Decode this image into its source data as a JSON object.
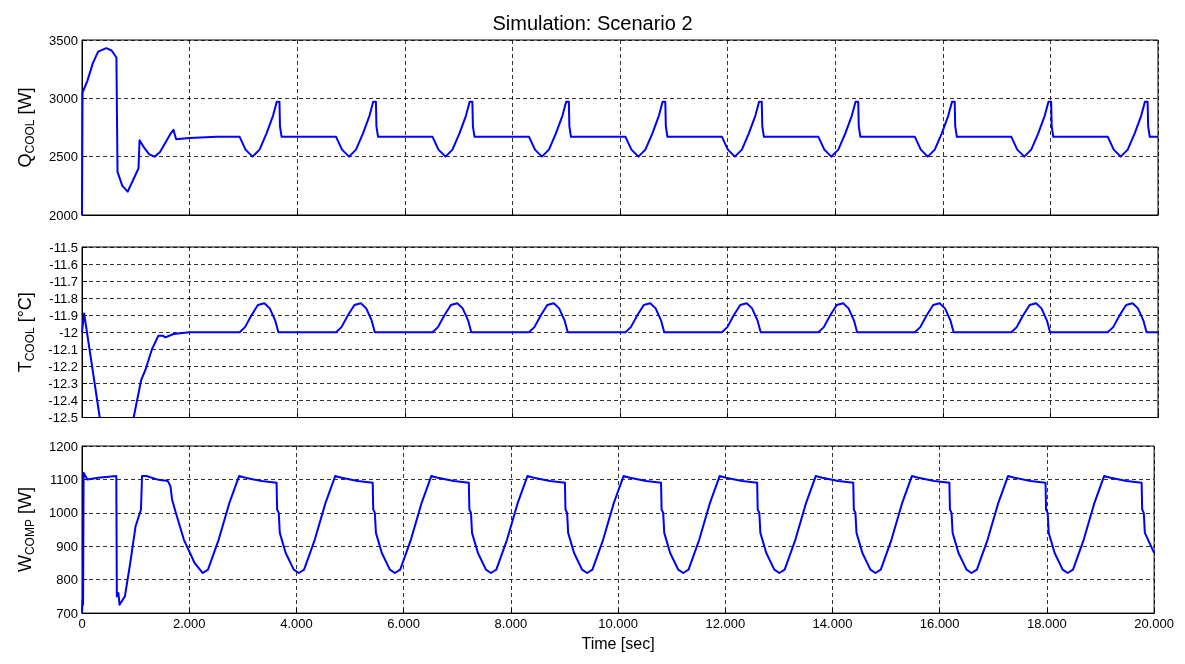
{
  "chart_data": [
    {
      "type": "line",
      "title": "Simulation: Scenario 2",
      "ylabel": "Q$_{COOL}$ [W]",
      "xlim": [
        0,
        20
      ],
      "xticks": [
        {
          "value": 0,
          "label": null
        },
        {
          "value": 2,
          "label": null
        },
        {
          "value": 4,
          "label": null
        },
        {
          "value": 6,
          "label": null
        },
        {
          "value": 8,
          "label": null
        },
        {
          "value": 10,
          "label": null
        },
        {
          "value": 12,
          "label": null
        },
        {
          "value": 14,
          "label": null
        },
        {
          "value": 16,
          "label": null
        },
        {
          "value": 18,
          "label": null
        },
        {
          "value": 20,
          "label": null
        }
      ],
      "ylim": [
        2000,
        3500
      ],
      "yticks": [
        2000,
        2500,
        3000,
        3500
      ],
      "grid": true,
      "tick_labels": "y",
      "series": [
        {
          "color": "#0000ff",
          "x": [
            0,
            0.01,
            0.1,
            0.2,
            0.3,
            0.45,
            0.55,
            0.64,
            0.66,
            0.75,
            0.85,
            0.95,
            1.05,
            1.07,
            1.15,
            1.25,
            1.35,
            1.45,
            1.55,
            1.65,
            1.7,
            1.75,
            2,
            2.5,
            2.93,
            3.04,
            3.17,
            3.3,
            3.43,
            3.55,
            3.62,
            3.67,
            3.68,
            3.71,
            4.723,
            4.833,
            4.963,
            5.093,
            5.223,
            5.343,
            5.413,
            5.463,
            5.473,
            5.503,
            6.516,
            6.626,
            6.756,
            6.886,
            7.016,
            7.136,
            7.206,
            7.256,
            7.266,
            7.296,
            8.309,
            8.419,
            8.549,
            8.679,
            8.809,
            8.929,
            8.999,
            9.049,
            9.059,
            9.089,
            10.102,
            10.212,
            10.342,
            10.472,
            10.602,
            10.722,
            10.792,
            10.842,
            10.852,
            10.882,
            11.895,
            12.005,
            12.135,
            12.265,
            12.395,
            12.515,
            12.585,
            12.635,
            12.645,
            12.675,
            13.688,
            13.798,
            13.928,
            14.058,
            14.188,
            14.308,
            14.378,
            14.428,
            14.438,
            14.468,
            15.481,
            15.591,
            15.721,
            15.851,
            15.981,
            16.101,
            16.171,
            16.221,
            16.231,
            16.261,
            17.274,
            17.384,
            17.514,
            17.644,
            17.774,
            17.894,
            17.964,
            18.014,
            18.024,
            18.054,
            19.067,
            19.177,
            19.307,
            19.437,
            19.567,
            19.687,
            19.757,
            19.807,
            19.817,
            19.847,
            20
          ],
          "values": [
            2000,
            3050,
            3150,
            3300,
            3400,
            3430,
            3410,
            3350,
            2370,
            2250,
            2200,
            2300,
            2400,
            2640,
            2580,
            2520,
            2500,
            2540,
            2620,
            2700,
            2730,
            2650,
            2660,
            2670,
            2670,
            2560,
            2500,
            2560,
            2700,
            2850,
            2970,
            2970,
            2760,
            2670,
            2670,
            2560,
            2500,
            2560,
            2700,
            2850,
            2970,
            2970,
            2760,
            2670,
            2670,
            2560,
            2500,
            2560,
            2700,
            2850,
            2970,
            2970,
            2760,
            2670,
            2670,
            2560,
            2500,
            2560,
            2700,
            2850,
            2970,
            2970,
            2760,
            2670,
            2670,
            2560,
            2500,
            2560,
            2700,
            2850,
            2970,
            2970,
            2760,
            2670,
            2670,
            2560,
            2500,
            2560,
            2700,
            2850,
            2970,
            2970,
            2760,
            2670,
            2670,
            2560,
            2500,
            2560,
            2700,
            2850,
            2970,
            2970,
            2760,
            2670,
            2670,
            2560,
            2500,
            2560,
            2700,
            2850,
            2970,
            2970,
            2760,
            2670,
            2670,
            2560,
            2500,
            2560,
            2700,
            2850,
            2970,
            2970,
            2760,
            2670,
            2670,
            2560,
            2500,
            2560,
            2700,
            2850,
            2970,
            2970,
            2760,
            2670,
            2670
          ]
        }
      ]
    },
    {
      "type": "line",
      "ylabel": "T$_{COOL}$ [°C]",
      "xlim": [
        0,
        20
      ],
      "xticks": [
        {
          "value": 0,
          "label": null
        },
        {
          "value": 2,
          "label": null
        },
        {
          "value": 4,
          "label": null
        },
        {
          "value": 6,
          "label": null
        },
        {
          "value": 8,
          "label": null
        },
        {
          "value": 10,
          "label": null
        },
        {
          "value": 12,
          "label": null
        },
        {
          "value": 14,
          "label": null
        },
        {
          "value": 16,
          "label": null
        },
        {
          "value": 18,
          "label": null
        },
        {
          "value": 20,
          "label": null
        }
      ],
      "ylim": [
        -12.5,
        -11.5
      ],
      "yticks": [
        -12.5,
        -12.4,
        -12.3,
        -12.2,
        -12.1,
        -12,
        -11.9,
        -11.8,
        -11.7,
        -11.6,
        -11.5
      ],
      "grid": true,
      "tick_labels": "y",
      "series": [
        {
          "color": "#0000ff",
          "x": [
            0,
            0.04,
            0.33,
            0.6,
            0.96,
            1.1,
            1.18,
            1.3,
            1.42,
            1.5,
            1.55,
            1.7,
            2,
            2.93,
            3.03,
            3.15,
            3.27,
            3.39,
            3.49,
            3.59,
            3.65,
            4.723,
            4.823,
            4.943,
            5.063,
            5.183,
            5.283,
            5.383,
            5.443,
            6.516,
            6.616,
            6.736,
            6.856,
            6.976,
            7.076,
            7.176,
            7.236,
            8.309,
            8.409,
            8.529,
            8.649,
            8.769,
            8.869,
            8.969,
            9.029,
            10.102,
            10.202,
            10.322,
            10.442,
            10.562,
            10.662,
            10.762,
            10.822,
            11.895,
            11.995,
            12.115,
            12.235,
            12.355,
            12.455,
            12.555,
            12.615,
            13.688,
            13.788,
            13.908,
            14.028,
            14.148,
            14.248,
            14.348,
            14.408,
            15.481,
            15.581,
            15.701,
            15.821,
            15.941,
            16.041,
            16.141,
            16.201,
            17.274,
            17.374,
            17.494,
            17.614,
            17.734,
            17.834,
            17.934,
            17.994,
            19.067,
            19.167,
            19.287,
            19.407,
            19.527,
            19.627,
            19.727,
            19.787,
            20
          ],
          "values": [
            -12,
            -11.89,
            -12.5,
            null,
            -12.5,
            -12.28,
            -12.22,
            -12.1,
            -12.02,
            -12.02,
            -12.03,
            -12.01,
            -12,
            -12,
            -11.97,
            -11.9,
            -11.84,
            -11.83,
            -11.86,
            -11.93,
            -12,
            -12,
            -11.97,
            -11.9,
            -11.84,
            -11.83,
            -11.86,
            -11.93,
            -12,
            -12,
            -11.97,
            -11.9,
            -11.84,
            -11.83,
            -11.86,
            -11.93,
            -12,
            -12,
            -11.97,
            -11.9,
            -11.84,
            -11.83,
            -11.86,
            -11.93,
            -12,
            -12,
            -11.97,
            -11.9,
            -11.84,
            -11.83,
            -11.86,
            -11.93,
            -12,
            -12,
            -11.97,
            -11.9,
            -11.84,
            -11.83,
            -11.86,
            -11.93,
            -12,
            -12,
            -11.97,
            -11.9,
            -11.84,
            -11.83,
            -11.86,
            -11.93,
            -12,
            -12,
            -11.97,
            -11.9,
            -11.84,
            -11.83,
            -11.86,
            -11.93,
            -12,
            -12,
            -11.97,
            -11.9,
            -11.84,
            -11.83,
            -11.86,
            -11.93,
            -12,
            -12,
            -11.97,
            -11.9,
            -11.84,
            -11.83,
            -11.86,
            -11.93,
            -12,
            -12
          ]
        }
      ]
    },
    {
      "type": "line",
      "ylabel": "W$_{COMP}$ [W]",
      "xlabel": "Time [sec]",
      "xlim": [
        0,
        20
      ],
      "xticks": [
        0,
        {
          "value": 2,
          "label": "2.000"
        },
        {
          "value": 4,
          "label": "4.000"
        },
        {
          "value": 6,
          "label": "6.000"
        },
        {
          "value": 8,
          "label": "8.000"
        },
        {
          "value": 10,
          "label": "10.000"
        },
        {
          "value": 12,
          "label": "12.000"
        },
        {
          "value": 14,
          "label": "14.000"
        },
        {
          "value": 16,
          "label": "16.000"
        },
        {
          "value": 18,
          "label": "18.000"
        },
        {
          "value": 20,
          "label": "20.000"
        }
      ],
      "ylim": [
        700,
        1200
      ],
      "yticks": [
        700,
        800,
        900,
        1000,
        1100,
        1200
      ],
      "grid": true,
      "series": [
        {
          "color": "#0000ff",
          "x": [
            0,
            0.01,
            0.02,
            0.03,
            0.1,
            0.3,
            0.64,
            0.65,
            0.68,
            0.7,
            0.8,
            0.9,
            1,
            1.1,
            1.12,
            1.2,
            1.4,
            1.6,
            1.65,
            1.68,
            1.75,
            1.9,
            2.1,
            2.25,
            2.35,
            2.55,
            2.75,
            2.93,
            3.05,
            3.35,
            3.63,
            3.64,
            3.67,
            3.69,
            3.8,
            3.95,
            4.043,
            4.143,
            4.343,
            4.543,
            4.723,
            4.843,
            5.143,
            5.423,
            5.433,
            5.463,
            5.483,
            5.593,
            5.743,
            5.836,
            5.936,
            6.136,
            6.336,
            6.516,
            6.636,
            6.936,
            7.216,
            7.226,
            7.256,
            7.276,
            7.386,
            7.536,
            7.629,
            7.729,
            7.929,
            8.129,
            8.309,
            8.429,
            8.729,
            9.009,
            9.019,
            9.049,
            9.069,
            9.179,
            9.329,
            9.422,
            9.522,
            9.722,
            9.922,
            10.102,
            10.222,
            10.522,
            10.802,
            10.812,
            10.842,
            10.862,
            10.972,
            11.122,
            11.215,
            11.315,
            11.515,
            11.715,
            11.895,
            12.015,
            12.315,
            12.595,
            12.605,
            12.635,
            12.655,
            12.765,
            12.915,
            13.008,
            13.108,
            13.308,
            13.508,
            13.688,
            13.808,
            14.108,
            14.388,
            14.398,
            14.428,
            14.448,
            14.558,
            14.708,
            14.801,
            14.901,
            15.101,
            15.301,
            15.481,
            15.601,
            15.901,
            16.181,
            16.191,
            16.221,
            16.241,
            16.351,
            16.501,
            16.594,
            16.694,
            16.894,
            17.094,
            17.274,
            17.394,
            17.694,
            17.974,
            17.984,
            18.014,
            18.034,
            18.144,
            18.294,
            18.387,
            18.487,
            18.687,
            18.887,
            19.067,
            19.187,
            19.487,
            19.767,
            19.777,
            19.807,
            19.827,
            20
          ],
          "values": [
            700,
            740,
            725,
            1120,
            1100,
            1105,
            1110,
            750,
            760,
            725,
            750,
            850,
            960,
            1010,
            1110,
            1110,
            1100,
            1095,
            1080,
            1040,
            1000,
            920,
            850,
            820,
            830,
            920,
            1030,
            1110,
            1105,
            1095,
            1090,
            1010,
            1000,
            940,
            880,
            830,
            820,
            830,
            920,
            1030,
            1110,
            1105,
            1095,
            1090,
            1010,
            1000,
            940,
            880,
            830,
            820,
            830,
            920,
            1030,
            1110,
            1105,
            1095,
            1090,
            1010,
            1000,
            940,
            880,
            830,
            820,
            830,
            920,
            1030,
            1110,
            1105,
            1095,
            1090,
            1010,
            1000,
            940,
            880,
            830,
            820,
            830,
            920,
            1030,
            1110,
            1105,
            1095,
            1090,
            1010,
            1000,
            940,
            880,
            830,
            820,
            830,
            920,
            1030,
            1110,
            1105,
            1095,
            1090,
            1010,
            1000,
            940,
            880,
            830,
            820,
            830,
            920,
            1030,
            1110,
            1105,
            1095,
            1090,
            1010,
            1000,
            940,
            880,
            830,
            820,
            830,
            920,
            1030,
            1110,
            1105,
            1095,
            1090,
            1010,
            1000,
            940,
            880,
            830,
            820,
            830,
            920,
            1030,
            1110,
            1105,
            1095,
            1090,
            1010,
            1000,
            940,
            880,
            830,
            820,
            830,
            920,
            1030,
            1110,
            1105,
            1095,
            1090,
            1010,
            1000,
            940,
            880
          ]
        }
      ]
    }
  ]
}
